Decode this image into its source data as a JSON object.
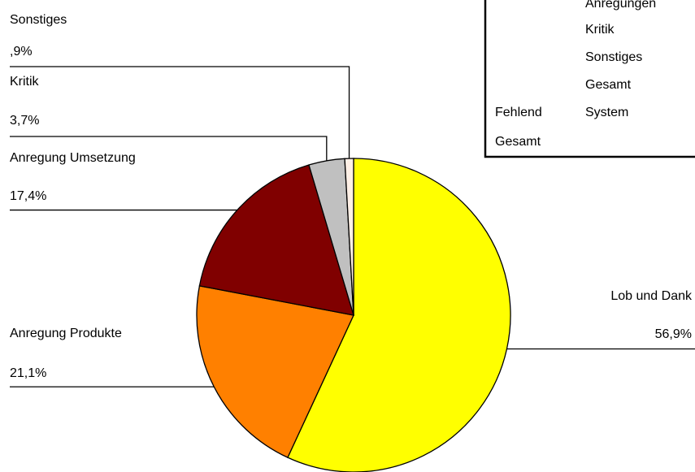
{
  "chart_data": {
    "type": "pie",
    "categories": [
      "Lob und Dank",
      "Anregung Produkte",
      "Anregung Umsetzung",
      "Kritik",
      "Sonstiges"
    ],
    "values": [
      56.9,
      21.1,
      17.4,
      3.7,
      0.9
    ],
    "value_labels": [
      "56,9%",
      "21,1%",
      "17,4%",
      "3,7%",
      ",9%"
    ],
    "colors": [
      "#ffff00",
      "#ff8000",
      "#800000",
      "#c0c0c0",
      "#fff0e6"
    ]
  },
  "table": {
    "rows": [
      {
        "label": "Anregungen"
      },
      {
        "label": "Kritik"
      },
      {
        "label": "Sonstiges"
      },
      {
        "label": "Gesamt"
      },
      {
        "group": "Fehlend",
        "label": "System"
      },
      {
        "group": "Gesamt"
      }
    ]
  }
}
